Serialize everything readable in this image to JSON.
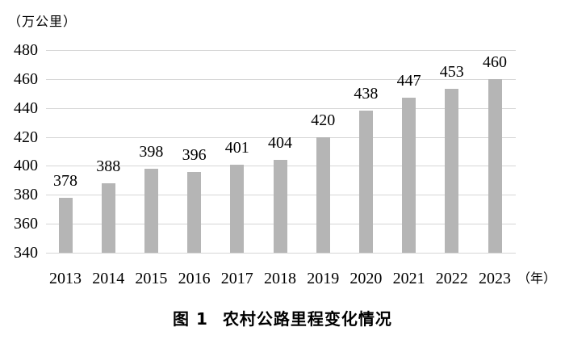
{
  "chart_data": {
    "type": "bar",
    "title_prefix": "图 1",
    "title": "农村公路里程变化情况",
    "y_unit_label": "（万公里）",
    "x_unit_label": "（年）",
    "categories": [
      "2013",
      "2014",
      "2015",
      "2016",
      "2017",
      "2018",
      "2019",
      "2020",
      "2021",
      "2022",
      "2023"
    ],
    "values": [
      378,
      388,
      398,
      396,
      401,
      404,
      420,
      438,
      447,
      453,
      460
    ],
    "yticks": [
      340,
      360,
      380,
      400,
      420,
      440,
      460,
      480
    ],
    "ylim": [
      340,
      480
    ],
    "grid": true,
    "legend": "none",
    "data_labels": true,
    "colors": {
      "bar": "#b5b5b5",
      "gridline": "#d6d6d6",
      "text": "#000000",
      "background": "#ffffff"
    }
  }
}
